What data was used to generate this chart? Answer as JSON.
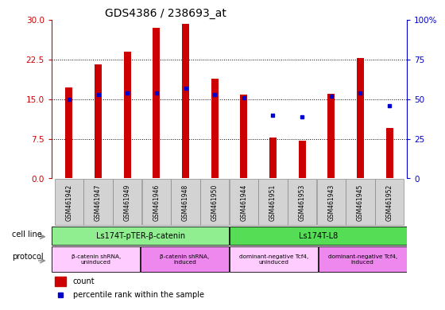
{
  "title": "GDS4386 / 238693_at",
  "samples": [
    "GSM461942",
    "GSM461947",
    "GSM461949",
    "GSM461946",
    "GSM461948",
    "GSM461950",
    "GSM461944",
    "GSM461951",
    "GSM461953",
    "GSM461943",
    "GSM461945",
    "GSM461952"
  ],
  "counts": [
    17.2,
    21.5,
    24.0,
    28.5,
    29.2,
    18.8,
    15.8,
    7.8,
    7.2,
    16.0,
    22.8,
    9.5
  ],
  "percentiles": [
    50,
    53,
    54,
    54,
    57,
    53,
    51,
    40,
    39,
    52,
    54,
    46
  ],
  "bar_color": "#cc0000",
  "dot_color": "#0000cc",
  "ylim_left": [
    0,
    30
  ],
  "ylim_right": [
    0,
    100
  ],
  "yticks_left": [
    0,
    7.5,
    15,
    22.5,
    30
  ],
  "yticks_right": [
    0,
    25,
    50,
    75,
    100
  ],
  "cell_line_groups": [
    {
      "label": "Ls174T-pTER-β-catenin",
      "start": 0,
      "end": 6,
      "color": "#90ee90"
    },
    {
      "label": "Ls174T-L8",
      "start": 6,
      "end": 12,
      "color": "#55dd55"
    }
  ],
  "protocol_groups": [
    {
      "label": "β-catenin shRNA,\nuninduced",
      "start": 0,
      "end": 3,
      "color": "#ffccff"
    },
    {
      "label": "β-catenin shRNA,\ninduced",
      "start": 3,
      "end": 6,
      "color": "#ee88ee"
    },
    {
      "label": "dominant-negative Tcf4,\nuninduced",
      "start": 6,
      "end": 9,
      "color": "#ffccff"
    },
    {
      "label": "dominant-negative Tcf4,\ninduced",
      "start": 9,
      "end": 12,
      "color": "#ee88ee"
    }
  ],
  "legend_count_label": "count",
  "legend_percentile_label": "percentile rank within the sample",
  "cell_line_label": "cell line",
  "protocol_label": "protocol",
  "bg_color": "#ffffff",
  "plot_bg_color": "#ffffff",
  "axis_label_color_left": "#cc0000",
  "axis_label_color_right": "#0000cc",
  "sample_bg_color": "#d3d3d3"
}
